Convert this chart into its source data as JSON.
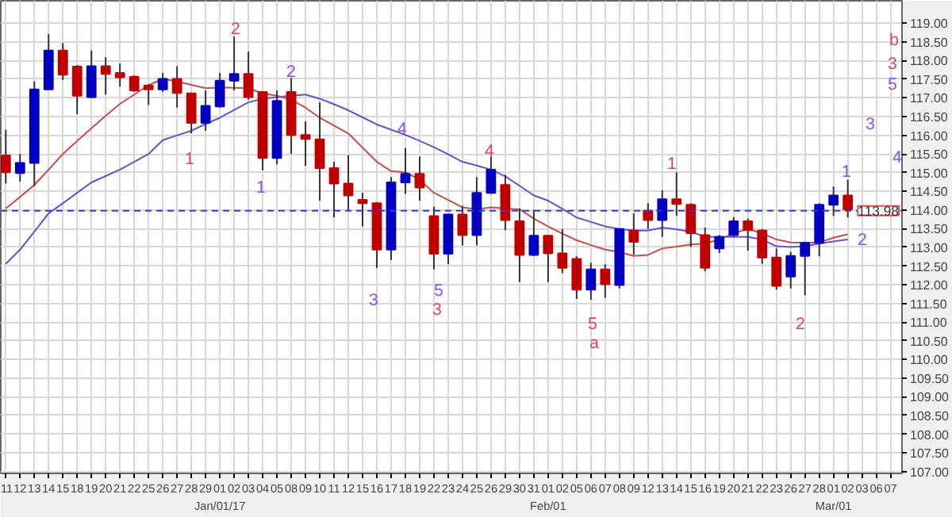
{
  "chart_data": {
    "type": "candlestick",
    "categories": [
      "11",
      "12",
      "13",
      "14",
      "15",
      "18",
      "19",
      "20",
      "21",
      "22",
      "25",
      "26",
      "27",
      "28",
      "29",
      "01\nJan/01/17",
      "02",
      "03",
      "04",
      "05",
      "08",
      "09",
      "10",
      "11",
      "12",
      "15",
      "16",
      "17",
      "18",
      "19",
      "22",
      "23",
      "24",
      "25",
      "26",
      "29",
      "30",
      "31",
      "01\nFeb/01",
      "02",
      "05",
      "06",
      "07",
      "08",
      "09",
      "12",
      "13",
      "14",
      "15",
      "16",
      "19",
      "20",
      "21",
      "22",
      "23",
      "26",
      "27",
      "28",
      "01\nMar/01",
      "02",
      "03",
      "06",
      "07"
    ],
    "ohlc": [
      [
        115.46,
        116.15,
        114.71,
        115.01
      ],
      [
        114.99,
        115.5,
        114.76,
        115.26
      ],
      [
        115.26,
        117.44,
        114.64,
        117.23
      ],
      [
        117.23,
        118.71,
        117.23,
        118.27
      ],
      [
        118.27,
        118.47,
        117.48,
        117.62
      ],
      [
        117.84,
        117.88,
        116.56,
        117.06
      ],
      [
        117.02,
        118.27,
        116.99,
        117.85
      ],
      [
        117.85,
        118.09,
        117.09,
        117.64
      ],
      [
        117.67,
        117.92,
        117.3,
        117.55
      ],
      [
        117.57,
        117.6,
        117.16,
        117.2
      ],
      [
        117.33,
        117.37,
        116.81,
        117.23
      ],
      [
        117.23,
        117.67,
        117.16,
        117.51
      ],
      [
        117.51,
        117.85,
        116.74,
        117.13
      ],
      [
        117.12,
        117.14,
        116.05,
        116.33
      ],
      [
        116.33,
        117.2,
        116.12,
        116.79
      ],
      [
        116.77,
        117.67,
        116.74,
        117.46
      ],
      [
        117.46,
        118.64,
        117.2,
        117.64
      ],
      [
        117.64,
        118.24,
        116.95,
        117.02
      ],
      [
        117.16,
        117.16,
        115.06,
        115.39
      ],
      [
        115.39,
        117.2,
        115.22,
        116.92
      ],
      [
        117.16,
        117.53,
        115.5,
        116.01
      ],
      [
        116.01,
        116.37,
        115.18,
        115.9
      ],
      [
        115.89,
        116.88,
        114.25,
        115.12
      ],
      [
        115.12,
        115.29,
        113.8,
        114.71
      ],
      [
        114.71,
        115.47,
        114.0,
        114.39
      ],
      [
        114.27,
        114.46,
        113.56,
        114.18
      ],
      [
        114.18,
        114.2,
        112.45,
        112.94
      ],
      [
        112.94,
        114.88,
        112.66,
        114.74
      ],
      [
        114.74,
        115.66,
        114.43,
        114.97
      ],
      [
        114.97,
        115.43,
        114.25,
        114.6
      ],
      [
        113.84,
        114.09,
        112.41,
        112.83
      ],
      [
        112.83,
        113.9,
        112.55,
        113.88
      ],
      [
        113.88,
        114.11,
        113.05,
        113.33
      ],
      [
        113.33,
        114.88,
        113.05,
        114.46
      ],
      [
        114.46,
        115.43,
        114.43,
        115.08
      ],
      [
        114.67,
        114.94,
        113.46,
        113.73
      ],
      [
        113.7,
        114.04,
        112.07,
        112.8
      ],
      [
        112.8,
        114.0,
        112.77,
        113.31
      ],
      [
        113.31,
        113.33,
        112.07,
        112.84
      ],
      [
        112.84,
        113.49,
        112.31,
        112.45
      ],
      [
        112.69,
        112.76,
        111.62,
        111.87
      ],
      [
        111.87,
        112.59,
        111.6,
        112.41
      ],
      [
        112.41,
        112.55,
        111.65,
        112.01
      ],
      [
        111.99,
        113.51,
        111.9,
        113.49
      ],
      [
        113.45,
        113.91,
        112.8,
        113.15
      ],
      [
        113.98,
        114.18,
        113.49,
        113.73
      ],
      [
        113.73,
        114.53,
        113.28,
        114.29
      ],
      [
        114.29,
        115.01,
        113.84,
        114.16
      ],
      [
        114.14,
        114.18,
        113.01,
        113.38
      ],
      [
        113.33,
        113.53,
        112.36,
        112.45
      ],
      [
        112.97,
        113.33,
        112.85,
        113.28
      ],
      [
        113.33,
        113.81,
        113.28,
        113.7
      ],
      [
        113.7,
        113.77,
        112.91,
        113.46
      ],
      [
        113.45,
        113.49,
        112.56,
        112.73
      ],
      [
        112.73,
        112.97,
        111.87,
        111.97
      ],
      [
        112.22,
        112.88,
        111.9,
        112.77
      ],
      [
        112.77,
        113.15,
        111.72,
        113.12
      ],
      [
        113.12,
        114.18,
        112.76,
        114.14
      ],
      [
        114.14,
        114.63,
        113.84,
        114.39
      ],
      [
        114.39,
        114.81,
        113.8,
        114.02
      ],
      null,
      null,
      null
    ],
    "colors": [
      "#c00000",
      "#0000c0",
      "#0000c0",
      "#0000c0",
      "#c00000",
      "#c00000",
      "#0000c0",
      "#c00000",
      "#c00000",
      "#c00000",
      "#c00000",
      "#0000c0",
      "#c00000",
      "#c00000",
      "#0000c0",
      "#0000c0",
      "#0000c0",
      "#c00000",
      "#c00000",
      "#0000c0",
      "#c00000",
      "#c00000",
      "#c00000",
      "#c00000",
      "#c00000",
      "#c00000",
      "#c00000",
      "#0000c0",
      "#0000c0",
      "#c00000",
      "#c00000",
      "#0000c0",
      "#c00000",
      "#0000c0",
      "#0000c0",
      "#c00000",
      "#c00000",
      "#0000c0",
      "#c00000",
      "#c00000",
      "#c00000",
      "#0000c0",
      "#c00000",
      "#0000c0",
      "#c00000",
      "#c00000",
      "#0000c0",
      "#c00000",
      "#c00000",
      "#c00000",
      "#0000c0",
      "#0000c0",
      "#c00000",
      "#c00000",
      "#c00000",
      "#0000c0",
      "#0000c0",
      "#0000c0",
      "#0000c0",
      "#c00000",
      null,
      null,
      null
    ],
    "series": [
      {
        "type": "line",
        "color": "#c0504d",
        "values": [
          114.04,
          114.35,
          114.67,
          115.08,
          115.5,
          115.85,
          116.19,
          116.52,
          116.84,
          117.09,
          117.34,
          117.51,
          117.44,
          117.35,
          117.26,
          117.28,
          117.27,
          117.26,
          117.12,
          117.06,
          116.95,
          116.74,
          116.47,
          116.26,
          116.05,
          115.67,
          115.29,
          115.04,
          115.01,
          114.81,
          114.46,
          114.27,
          114.07,
          114.02,
          114.07,
          114.04,
          114.02,
          113.77,
          113.56,
          113.37,
          113.19,
          113.06,
          112.94,
          112.87,
          112.77,
          112.8,
          112.97,
          113.02,
          113.08,
          113.1,
          113.21,
          113.38,
          113.49,
          113.38,
          113.21,
          113.13,
          113.12,
          113.13,
          113.26,
          113.35,
          null,
          null,
          null
        ]
      },
      {
        "type": "line",
        "color": "#6a4fc8",
        "values": [
          112.56,
          112.94,
          113.42,
          113.91,
          114.18,
          114.46,
          114.74,
          114.91,
          115.08,
          115.29,
          115.5,
          115.87,
          116.0,
          116.12,
          116.3,
          116.47,
          116.68,
          116.88,
          116.98,
          117.02,
          117.06,
          117.09,
          116.98,
          116.83,
          116.67,
          116.48,
          116.29,
          116.15,
          116.01,
          115.85,
          115.68,
          115.49,
          115.29,
          115.19,
          115.08,
          114.9,
          114.65,
          114.39,
          114.25,
          114.03,
          113.8,
          113.68,
          113.56,
          113.49,
          113.45,
          113.45,
          113.53,
          113.48,
          113.42,
          113.28,
          113.28,
          113.28,
          113.28,
          113.21,
          113.03,
          113.01,
          113.03,
          113.1,
          113.16,
          113.21,
          null,
          null,
          null
        ]
      }
    ],
    "ref_lines": [
      {
        "axis": "y",
        "value": 113.98,
        "label": "113.98",
        "color": "#3333ff",
        "line_style": "dashed"
      }
    ],
    "annotations": [
      "1",
      "2",
      "2",
      "1",
      "4",
      "3",
      "5",
      "3",
      "4",
      "5",
      "a",
      "1",
      "1",
      "2",
      "2",
      "b",
      "3",
      "5",
      "3",
      "4"
    ],
    "ylim": [
      106.95,
      119.6
    ],
    "yticks": [
      {
        "value": 107,
        "label": "107.00"
      },
      {
        "value": 107.5,
        "label": "107.50"
      },
      {
        "value": 108,
        "label": "108.00"
      },
      {
        "value": 108.5,
        "label": "108.50"
      },
      {
        "value": 109,
        "label": "109.00"
      },
      {
        "value": 109.5,
        "label": "109.50"
      },
      {
        "value": 110,
        "label": "110.00"
      },
      {
        "value": 110.5,
        "label": "110.50"
      },
      {
        "value": 111,
        "label": "111.00"
      },
      {
        "value": 111.5,
        "label": "111.50"
      },
      {
        "value": 112,
        "label": "112.00"
      },
      {
        "value": 112.5,
        "label": "112.50"
      },
      {
        "value": 113,
        "label": "113.00"
      },
      {
        "value": 113.5,
        "label": "113.50"
      },
      {
        "value": 114,
        "label": "114.00"
      },
      {
        "value": 114.5,
        "label": "114.50"
      },
      {
        "value": 115,
        "label": "115.00"
      },
      {
        "value": 115.5,
        "label": "115.50"
      },
      {
        "value": 116,
        "label": "116.00"
      },
      {
        "value": 116.5,
        "label": "116.50"
      },
      {
        "value": 117,
        "label": "117.00"
      },
      {
        "value": 117.5,
        "label": "117.50"
      },
      {
        "value": 118,
        "label": "118.00"
      },
      {
        "value": 118.5,
        "label": "118.50"
      },
      {
        "value": 119,
        "label": "119.00"
      }
    ],
    "grid": true
  }
}
